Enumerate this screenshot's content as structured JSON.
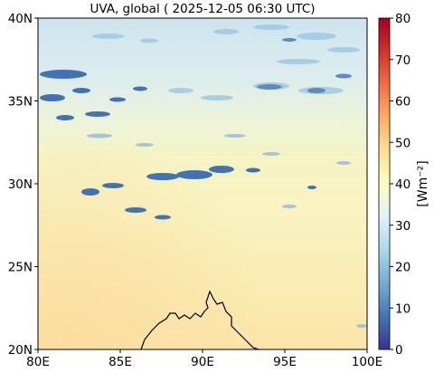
{
  "figure": {
    "title": "UVA, global ( 2025-12-05 06:30 UTC)"
  },
  "map": {
    "lon_range": [
      80,
      100
    ],
    "lat_range": [
      20,
      40
    ],
    "x_ticks": [
      {
        "value": 80,
        "label": "80E"
      },
      {
        "value": 85,
        "label": "85E"
      },
      {
        "value": 90,
        "label": "90E"
      },
      {
        "value": 95,
        "label": "95E"
      },
      {
        "value": 100,
        "label": "100E"
      }
    ],
    "y_ticks": [
      {
        "value": 20,
        "label": "20N"
      },
      {
        "value": 25,
        "label": "25N"
      },
      {
        "value": 30,
        "label": "30N"
      },
      {
        "value": 35,
        "label": "35N"
      },
      {
        "value": 40,
        "label": "40N"
      }
    ],
    "field_description_colors": {
      "north_low_values": "#cfe6ef",
      "central_background": "#f7f3bd",
      "south_high_values": "#fbe3a6",
      "cloud_low_values": "#3f72b6"
    }
  },
  "colorbar": {
    "label": "[Wm⁻²]",
    "range": [
      0,
      80
    ],
    "ticks": [
      {
        "value": 0,
        "label": "0"
      },
      {
        "value": 10,
        "label": "10"
      },
      {
        "value": 20,
        "label": "20"
      },
      {
        "value": 30,
        "label": "30"
      },
      {
        "value": 40,
        "label": "40"
      },
      {
        "value": 50,
        "label": "50"
      },
      {
        "value": 60,
        "label": "60"
      },
      {
        "value": 70,
        "label": "70"
      },
      {
        "value": 80,
        "label": "80"
      }
    ],
    "colormap": [
      "#313695",
      "#4575b4",
      "#74add1",
      "#abd9e9",
      "#e0f3f8",
      "#ffffbf",
      "#fee090",
      "#fdae61",
      "#f46d43",
      "#d73027",
      "#a50026"
    ]
  }
}
